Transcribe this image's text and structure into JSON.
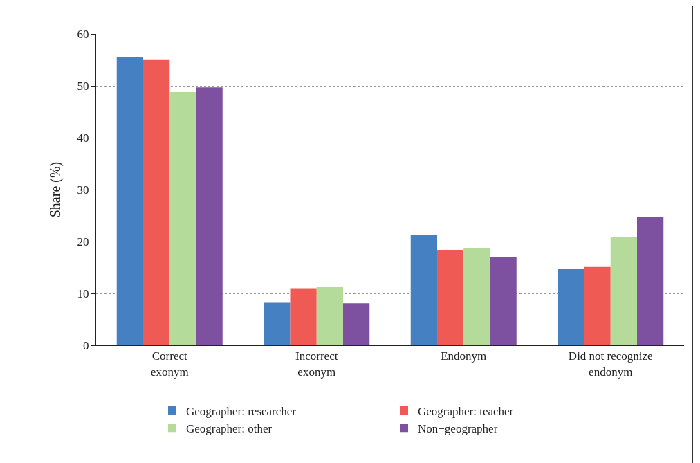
{
  "chart_data": {
    "type": "bar",
    "ylabel": "Share (%)",
    "categories": [
      "Correct exonym",
      "Incorrect exonym",
      "Endonym",
      "Did not recognize endonym"
    ],
    "series": [
      {
        "name": "Geographer: researcher",
        "color": "#4480c2",
        "values": [
          55.6,
          8.2,
          21.2,
          14.8
        ]
      },
      {
        "name": "Geographer: teacher",
        "color": "#ef5a55",
        "values": [
          55.1,
          11.0,
          18.4,
          15.1
        ]
      },
      {
        "name": "Geographer: other",
        "color": "#b5db9b",
        "values": [
          48.8,
          11.3,
          18.7,
          20.8
        ]
      },
      {
        "name": "Non−geographer",
        "color": "#7d51a0",
        "values": [
          49.7,
          8.1,
          17.0,
          24.8
        ]
      }
    ],
    "ylim": [
      0,
      60
    ],
    "yticks": [
      0,
      10,
      20,
      30,
      40,
      50,
      60
    ],
    "grid": "y",
    "legend": "bottom"
  }
}
